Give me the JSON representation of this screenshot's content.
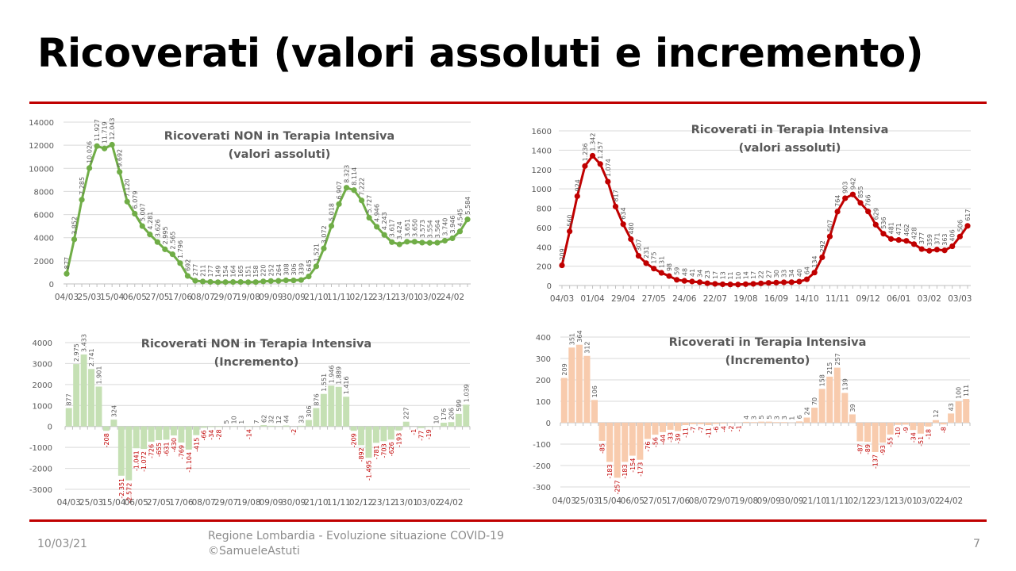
{
  "slide": {
    "title": "Ricoverati (valori assoluti e incremento)",
    "footer_date": "10/03/21",
    "footer_line1": "Regione Lombardia - Evoluzione situazione COVID-19",
    "footer_line2": "©SamueleAstuti",
    "page_number": "7"
  },
  "colors": {
    "accent": "#c00000",
    "green_line": "#70ad47",
    "green_bar": "#c5e0b4",
    "red_line": "#c00000",
    "red_bar": "#f8cbad"
  },
  "chart_data": [
    {
      "id": "non_ti_abs",
      "type": "line",
      "title": [
        "Ricoverati NON in Terapia Intensiva",
        "(valori assoluti)"
      ],
      "ylim": [
        0,
        14000
      ],
      "yticks": [
        0,
        2000,
        4000,
        6000,
        8000,
        10000,
        12000,
        14000
      ],
      "xtick_labels": [
        "04/03",
        "25/03",
        "15/04",
        "06/05",
        "27/05",
        "17/06",
        "08/07",
        "29/07",
        "19/08",
        "09/09",
        "30/09",
        "21/10",
        "11/11",
        "02/12",
        "23/12",
        "13/01",
        "03/02",
        "24/02"
      ],
      "xtick_every": 3,
      "values": [
        877,
        3852,
        7285,
        10026,
        11927,
        11719,
        12043,
        9692,
        7120,
        6079,
        5007,
        4281,
        3626,
        2995,
        2565,
        1796,
        692,
        277,
        211,
        177,
        149,
        154,
        164,
        165,
        151,
        158,
        220,
        252,
        264,
        308,
        306,
        339,
        645,
        1521,
        3072,
        5018,
        6907,
        8323,
        8114,
        7222,
        5727,
        4946,
        4243,
        3617,
        3424,
        3651,
        3650,
        3573,
        3554,
        3564,
        3740,
        3946,
        4545,
        5584
      ]
    },
    {
      "id": "ti_abs",
      "type": "line",
      "title": [
        "Ricoverati in Terapia Intensiva",
        "(valori assoluti)"
      ],
      "ylim": [
        0,
        1600
      ],
      "yticks": [
        0,
        200,
        400,
        600,
        800,
        1000,
        1200,
        1400,
        1600
      ],
      "xtick_labels": [
        "04/03",
        "01/04",
        "29/04",
        "27/05",
        "24/06",
        "22/07",
        "19/08",
        "16/09",
        "14/10",
        "11/11",
        "09/12",
        "06/01",
        "03/02",
        "03/03"
      ],
      "xtick_every": 4,
      "values": [
        209,
        560,
        924,
        1236,
        1342,
        1257,
        1074,
        817,
        634,
        480,
        307,
        231,
        175,
        131,
        98,
        59,
        48,
        41,
        34,
        23,
        17,
        13,
        11,
        10,
        14,
        17,
        22,
        27,
        30,
        33,
        34,
        40,
        64,
        134,
        292,
        507,
        764,
        903,
        942,
        855,
        766,
        629,
        536,
        481,
        471,
        462,
        428,
        377,
        359,
        371,
        363,
        406,
        506,
        617
      ]
    },
    {
      "id": "non_ti_inc",
      "type": "bar",
      "title": [
        "Ricoverati NON in Terapia Intensiva",
        "(Incremento)"
      ],
      "ylim": [
        -3000,
        4000
      ],
      "yticks": [
        -3000,
        -2000,
        -1000,
        0,
        1000,
        2000,
        3000,
        4000
      ],
      "xtick_labels": [
        "04/03",
        "25/03",
        "15/04",
        "06/05",
        "27/05",
        "17/06",
        "08/07",
        "29/07",
        "19/08",
        "09/09",
        "30/09",
        "21/10",
        "11/11",
        "02/12",
        "23/12",
        "13/01",
        "03/02",
        "24/02"
      ],
      "xtick_every": 3,
      "values": [
        877,
        2975,
        3433,
        2741,
        1901,
        -208,
        324,
        -2351,
        -2572,
        -1041,
        -1072,
        -726,
        -655,
        -631,
        -430,
        -769,
        -1104,
        -415,
        -66,
        -34,
        -28,
        5,
        10,
        1,
        -14,
        7,
        62,
        32,
        12,
        44,
        -2,
        33,
        306,
        876,
        1551,
        1946,
        1889,
        1416,
        -209,
        -892,
        -1495,
        -781,
        -703,
        -626,
        -193,
        227,
        -1,
        -77,
        -19,
        10,
        176,
        206,
        599,
        1039
      ]
    },
    {
      "id": "ti_inc",
      "type": "bar",
      "title": [
        "Ricoverati in Terapia Intensiva",
        "(Incremento)"
      ],
      "ylim": [
        -300,
        400
      ],
      "yticks": [
        -300,
        -200,
        -100,
        0,
        100,
        200,
        300,
        400
      ],
      "xtick_labels": [
        "04/03",
        "25/03",
        "15/04",
        "06/05",
        "27/05",
        "17/06",
        "08/07",
        "29/07",
        "19/08",
        "09/09",
        "30/09",
        "21/10",
        "11/11",
        "02/12",
        "23/12",
        "13/01",
        "03/02",
        "24/02"
      ],
      "xtick_every": 3,
      "values": [
        209,
        351,
        364,
        312,
        106,
        -85,
        -183,
        -257,
        -183,
        -154,
        -173,
        -76,
        -56,
        -44,
        -33,
        -39,
        -11,
        -7,
        -7,
        -11,
        -6,
        -4,
        -2,
        -1,
        4,
        3,
        5,
        5,
        3,
        3,
        1,
        6,
        24,
        70,
        158,
        215,
        257,
        139,
        39,
        -87,
        -89,
        -137,
        -93,
        -55,
        -10,
        -9,
        -34,
        -51,
        -18,
        12,
        -8,
        43,
        100,
        111
      ]
    }
  ]
}
